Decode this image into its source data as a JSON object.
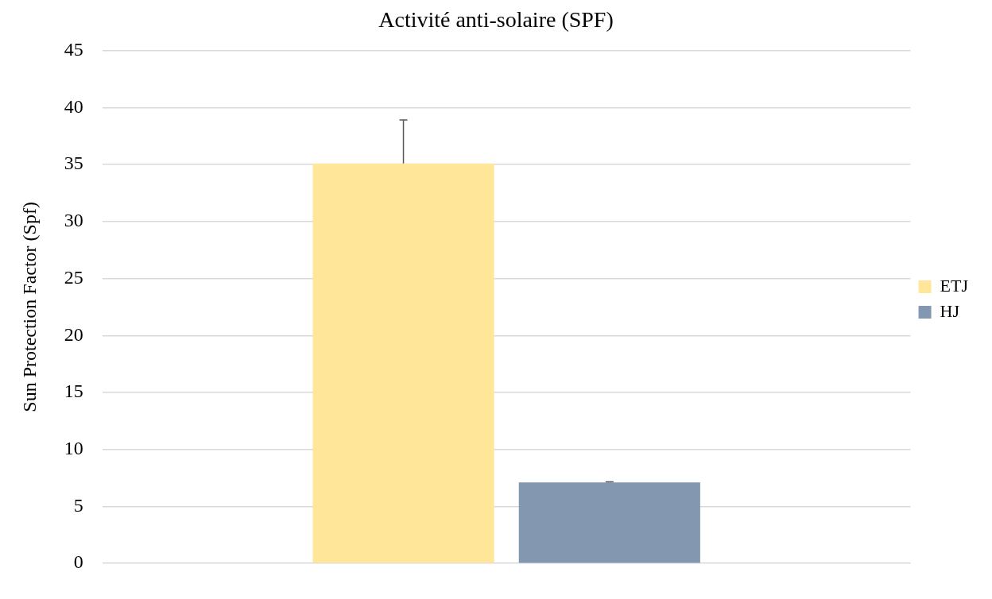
{
  "chart_data": {
    "type": "bar",
    "title": "Activité anti-solaire (SPF)",
    "ylabel": "Sun Protection Factor (Spf)",
    "categories": [
      null
    ],
    "series": [
      {
        "name": "ETJ",
        "color": "#ffe699",
        "values": [
          35.1
        ],
        "errors": [
          [
            35.1,
            38.9
          ]
        ]
      },
      {
        "name": "HJ",
        "color": "#8497b0",
        "values": [
          7.1
        ],
        "errors": [
          [
            7.1,
            7.15
          ]
        ]
      }
    ],
    "ylim": [
      0,
      45
    ],
    "yticks": [
      0,
      5,
      10,
      15,
      20,
      25,
      30,
      35,
      40,
      45
    ],
    "grid": "y",
    "legend": "right"
  }
}
